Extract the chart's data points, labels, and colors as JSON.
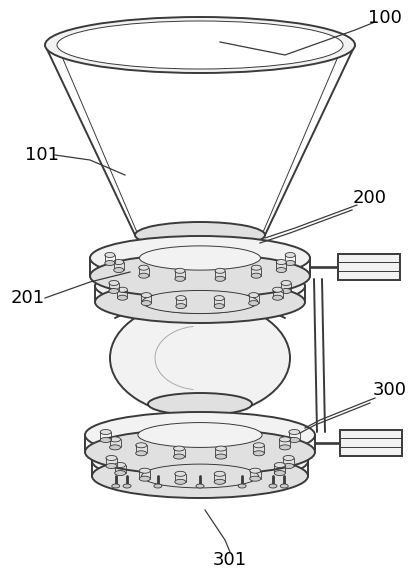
{
  "bg_color": "#ffffff",
  "line_color": "#3a3a3a",
  "line_width": 1.4,
  "thin_line": 0.7,
  "fig_w": 4.19,
  "fig_h": 5.83,
  "dpi": 100
}
